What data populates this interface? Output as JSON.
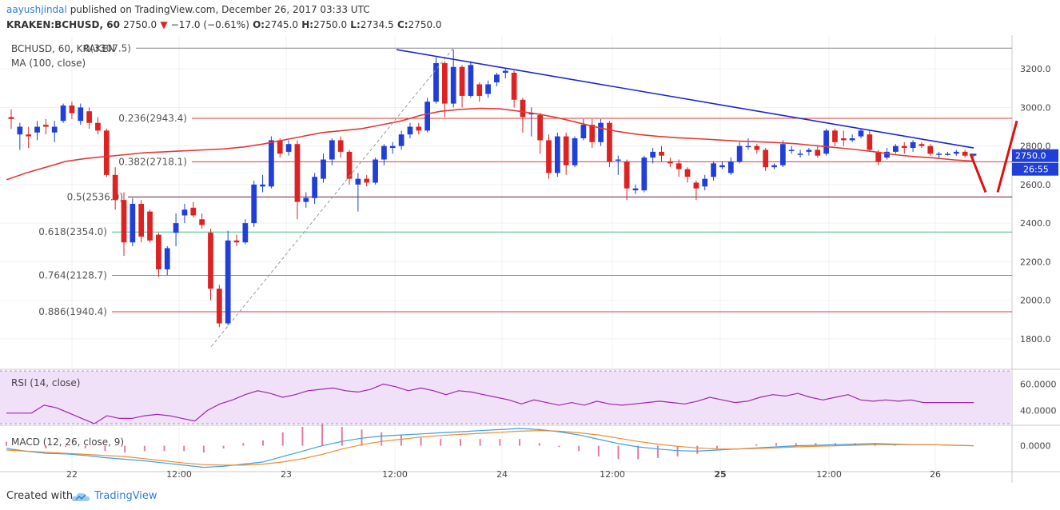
{
  "header": {
    "author": "aayushjindal",
    "published_text": "published on TradingView.com, December 26, 2017 03:33 UTC",
    "symbol": "KRAKEN:BCHUSD, 60",
    "last": "2750.0",
    "change": "−17.0 (−0.61%)",
    "o_label": "O:",
    "o": "2745.0",
    "h_label": "H:",
    "h": "2750.0",
    "l_label": "L:",
    "l": "2734.5",
    "c_label": "C:",
    "c": "2750.0"
  },
  "chart_labels": {
    "symbol_line": "BCHUSD, 60, KRAKEN",
    "ma_line": "MA (100, close)",
    "rsi_line": "RSI (14, close)",
    "macd_line": "MACD (12, 26, close, 9)",
    "price_tag": "2750.0",
    "time_tag": "26:55"
  },
  "footer": {
    "created_with": "Created with",
    "brand": "TradingView"
  },
  "colors": {
    "up": "#1f3fd8",
    "down": "#dd2222",
    "ma": "#e53935",
    "trendline": "#1c26d6",
    "rsi_fill": "#f0e0f8",
    "rsi_line": "#9c27b0",
    "macd": "#3aa0e8",
    "signal": "#ef8b2c"
  },
  "chart_data": [
    {
      "type": "candlestick",
      "title": "BCHUSD, 60, KRAKEN",
      "y_ticks": [
        "3200.0",
        "3000.0",
        "2800.0",
        "2600.0",
        "2400.0",
        "2200.0",
        "2000.0",
        "1800.0"
      ],
      "y_tick_values": [
        3200,
        3000,
        2800,
        2600,
        2400,
        2200,
        2000,
        1800
      ],
      "ylim": [
        1650,
        3350
      ],
      "x_ticks": [
        "22",
        "12:00",
        "23",
        "12:00",
        "24",
        "12:00",
        "25",
        "12:00",
        "26"
      ],
      "last_price": 2750.0,
      "candles": [
        [
          2950,
          2940,
          2890,
          2990
        ],
        [
          2860,
          2900,
          2780,
          2920
        ],
        [
          2860,
          2850,
          2790,
          2900
        ],
        [
          2870,
          2900,
          2830,
          2930
        ],
        [
          2910,
          2900,
          2860,
          2940
        ],
        [
          2870,
          2900,
          2820,
          2930
        ],
        [
          2930,
          3010,
          2920,
          3020
        ],
        [
          3010,
          2970,
          2940,
          3030
        ],
        [
          2930,
          3000,
          2910,
          3020
        ],
        [
          2980,
          2920,
          2890,
          3000
        ],
        [
          2920,
          2880,
          2860,
          2950
        ],
        [
          2880,
          2650,
          2640,
          2890
        ],
        [
          2650,
          2520,
          2470,
          2690
        ],
        [
          2520,
          2300,
          2230,
          2560
        ],
        [
          2300,
          2500,
          2280,
          2530
        ],
        [
          2500,
          2330,
          2300,
          2520
        ],
        [
          2460,
          2310,
          2300,
          2470
        ],
        [
          2340,
          2160,
          2120,
          2350
        ],
        [
          2160,
          2270,
          2130,
          2280
        ],
        [
          2350,
          2400,
          2280,
          2450
        ],
        [
          2440,
          2470,
          2400,
          2500
        ],
        [
          2480,
          2440,
          2430,
          2510
        ],
        [
          2420,
          2390,
          2370,
          2450
        ],
        [
          2350,
          2060,
          2000,
          2370
        ],
        [
          2060,
          1880,
          1860,
          2080
        ],
        [
          1880,
          2310,
          1870,
          2360
        ],
        [
          2310,
          2300,
          2280,
          2340
        ],
        [
          2300,
          2400,
          2290,
          2420
        ],
        [
          2400,
          2600,
          2380,
          2620
        ],
        [
          2590,
          2600,
          2560,
          2650
        ],
        [
          2590,
          2830,
          2580,
          2850
        ],
        [
          2830,
          2760,
          2740,
          2840
        ],
        [
          2770,
          2810,
          2750,
          2830
        ],
        [
          2810,
          2510,
          2420,
          2830
        ],
        [
          2510,
          2530,
          2480,
          2560
        ],
        [
          2530,
          2640,
          2500,
          2660
        ],
        [
          2630,
          2730,
          2610,
          2760
        ],
        [
          2730,
          2830,
          2700,
          2840
        ],
        [
          2830,
          2770,
          2740,
          2850
        ],
        [
          2770,
          2630,
          2600,
          2780
        ],
        [
          2600,
          2630,
          2460,
          2660
        ],
        [
          2630,
          2610,
          2590,
          2650
        ],
        [
          2610,
          2730,
          2600,
          2740
        ],
        [
          2730,
          2800,
          2700,
          2810
        ],
        [
          2790,
          2800,
          2760,
          2820
        ],
        [
          2800,
          2860,
          2780,
          2880
        ],
        [
          2860,
          2900,
          2840,
          2920
        ],
        [
          2900,
          2880,
          2860,
          2920
        ],
        [
          2880,
          3030,
          2870,
          3050
        ],
        [
          3030,
          3230,
          3020,
          3260
        ],
        [
          3230,
          3020,
          2950,
          3240
        ],
        [
          3020,
          3210,
          3000,
          3300
        ],
        [
          3210,
          3060,
          3000,
          3220
        ],
        [
          3060,
          3220,
          3050,
          3240
        ],
        [
          3120,
          3060,
          3030,
          3130
        ],
        [
          3070,
          3120,
          3050,
          3140
        ],
        [
          3130,
          3170,
          3110,
          3180
        ],
        [
          3180,
          3190,
          3150,
          3200
        ],
        [
          3180,
          3040,
          3000,
          3190
        ],
        [
          3040,
          2950,
          2870,
          3050
        ],
        [
          2970,
          2970,
          2850,
          3000
        ],
        [
          2960,
          2830,
          2760,
          2970
        ],
        [
          2830,
          2660,
          2630,
          2860
        ],
        [
          2660,
          2850,
          2640,
          2870
        ],
        [
          2850,
          2700,
          2650,
          2870
        ],
        [
          2700,
          2840,
          2690,
          2850
        ],
        [
          2840,
          2910,
          2830,
          2940
        ],
        [
          2910,
          2820,
          2790,
          2940
        ],
        [
          2820,
          2920,
          2800,
          2940
        ],
        [
          2920,
          2720,
          2690,
          2930
        ],
        [
          2730,
          2730,
          2650,
          2750
        ],
        [
          2720,
          2580,
          2520,
          2730
        ],
        [
          2570,
          2580,
          2550,
          2600
        ],
        [
          2570,
          2740,
          2560,
          2750
        ],
        [
          2740,
          2770,
          2710,
          2790
        ],
        [
          2770,
          2750,
          2720,
          2800
        ],
        [
          2720,
          2710,
          2690,
          2740
        ],
        [
          2710,
          2680,
          2640,
          2730
        ],
        [
          2680,
          2640,
          2610,
          2690
        ],
        [
          2610,
          2580,
          2520,
          2620
        ],
        [
          2590,
          2630,
          2570,
          2650
        ],
        [
          2640,
          2710,
          2620,
          2720
        ],
        [
          2690,
          2700,
          2680,
          2720
        ],
        [
          2660,
          2720,
          2650,
          2740
        ],
        [
          2720,
          2800,
          2710,
          2820
        ],
        [
          2800,
          2800,
          2780,
          2840
        ],
        [
          2800,
          2780,
          2760,
          2810
        ],
        [
          2780,
          2690,
          2670,
          2790
        ],
        [
          2690,
          2700,
          2680,
          2710
        ],
        [
          2700,
          2810,
          2690,
          2830
        ],
        [
          2780,
          2780,
          2760,
          2800
        ],
        [
          2760,
          2760,
          2740,
          2780
        ],
        [
          2770,
          2780,
          2750,
          2790
        ],
        [
          2780,
          2750,
          2740,
          2800
        ],
        [
          2760,
          2880,
          2750,
          2890
        ],
        [
          2880,
          2820,
          2800,
          2890
        ],
        [
          2840,
          2830,
          2800,
          2880
        ],
        [
          2830,
          2840,
          2820,
          2860
        ],
        [
          2850,
          2880,
          2840,
          2890
        ],
        [
          2860,
          2780,
          2770,
          2880
        ],
        [
          2770,
          2720,
          2700,
          2780
        ],
        [
          2740,
          2770,
          2730,
          2790
        ],
        [
          2770,
          2800,
          2760,
          2810
        ],
        [
          2800,
          2790,
          2760,
          2820
        ],
        [
          2790,
          2820,
          2770,
          2830
        ],
        [
          2810,
          2800,
          2790,
          2820
        ],
        [
          2800,
          2760,
          2750,
          2810
        ],
        [
          2760,
          2760,
          2740,
          2770
        ],
        [
          2760,
          2760,
          2750,
          2770
        ],
        [
          2760,
          2770,
          2750,
          2780
        ],
        [
          2770,
          2750,
          2740,
          2780
        ],
        [
          2750,
          2760,
          2740,
          2760
        ]
      ],
      "moving_average": [
        [
          2625
        ],
        [
          2660
        ],
        [
          2690
        ],
        [
          2720
        ],
        [
          2735
        ],
        [
          2745
        ],
        [
          2755
        ],
        [
          2765
        ],
        [
          2770
        ],
        [
          2775
        ],
        [
          2780
        ],
        [
          2785
        ],
        [
          2795
        ],
        [
          2810
        ],
        [
          2830
        ],
        [
          2850
        ],
        [
          2870
        ],
        [
          2880
        ],
        [
          2890
        ],
        [
          2910
        ],
        [
          2930
        ],
        [
          2960
        ],
        [
          2980
        ],
        [
          2990
        ],
        [
          2995
        ],
        [
          2993
        ],
        [
          2980
        ],
        [
          2965
        ],
        [
          2945
        ],
        [
          2920
        ],
        [
          2895
        ],
        [
          2875
        ],
        [
          2860
        ],
        [
          2850
        ],
        [
          2843
        ],
        [
          2838
        ],
        [
          2832
        ],
        [
          2826
        ],
        [
          2822
        ],
        [
          2818
        ],
        [
          2812
        ],
        [
          2802
        ],
        [
          2792
        ],
        [
          2782
        ],
        [
          2770
        ],
        [
          2755
        ],
        [
          2745
        ],
        [
          2738
        ],
        [
          2728
        ],
        [
          2722
        ]
      ],
      "fibonacci": [
        {
          "label": "0(3307.5)",
          "value": 3307.5,
          "color": "#888888"
        },
        {
          "label": "0.236(2943.4)",
          "value": 2943.4,
          "color": "#e53935"
        },
        {
          "label": "0.382(2718.1)",
          "value": 2718.1,
          "color": "#e53935"
        },
        {
          "label": "0.5(2536.0)",
          "value": 2536.0,
          "color": "#6a1b3a"
        },
        {
          "label": "0.618(2354.0)",
          "value": 2354.0,
          "color": "#3cc08a"
        },
        {
          "label": "0.764(2128.7)",
          "value": 2128.7,
          "color": "#4aa4d8"
        },
        {
          "label": "0.886(1940.4)",
          "value": 1940.4,
          "color": "#e53935"
        }
      ],
      "trendline": [
        [
          3300,
          2790
        ]
      ]
    },
    {
      "type": "line",
      "title": "RSI (14, close)",
      "y_ticks": [
        "60.0000",
        "40.0000"
      ],
      "y_tick_values": [
        60,
        40
      ],
      "ylim": [
        30,
        70
      ],
      "band": [
        30,
        70
      ],
      "values": [
        38,
        38,
        38,
        44,
        42,
        38,
        34,
        30,
        36,
        34,
        34,
        36,
        37,
        36,
        34,
        32,
        40,
        45,
        48,
        52,
        55,
        53,
        50,
        52,
        55,
        56,
        57,
        55,
        54,
        56,
        60,
        58,
        55,
        57,
        55,
        52,
        55,
        54,
        52,
        50,
        48,
        45,
        48,
        46,
        44,
        46,
        44,
        47,
        45,
        44,
        45,
        46,
        47,
        46,
        45,
        47,
        50,
        48,
        46,
        47,
        50,
        52,
        51,
        53,
        50,
        48,
        50,
        52,
        48,
        47,
        48,
        47,
        48,
        46,
        46,
        46,
        46,
        46
      ]
    },
    {
      "type": "line",
      "title": "MACD (12, 26, close, 9)",
      "y_ticks": [
        "0.0000"
      ],
      "y_tick_values": [
        0
      ],
      "ylim": [
        -45,
        35
      ],
      "series": [
        {
          "values": [
            -5,
            -10,
            -14,
            -15,
            -18,
            -22,
            -25,
            -28,
            -32,
            -36,
            -40,
            -38,
            -34,
            -30,
            -20,
            -10,
            0,
            8,
            14,
            18,
            20,
            22,
            24,
            26,
            28,
            30,
            32,
            30,
            26,
            20,
            12,
            4,
            -2,
            -6,
            -9,
            -10,
            -8,
            -6,
            -4,
            -2,
            0,
            1,
            2,
            3,
            4,
            3,
            2,
            2,
            1,
            0
          ]
        },
        {
          "values": [
            -8,
            -10,
            -12,
            -14,
            -16,
            -18,
            -20,
            -24,
            -28,
            -32,
            -35,
            -36,
            -36,
            -34,
            -30,
            -24,
            -16,
            -6,
            2,
            8,
            12,
            16,
            19,
            21,
            23,
            25,
            27,
            28,
            27,
            24,
            20,
            14,
            8,
            3,
            -1,
            -4,
            -6,
            -6,
            -5,
            -4,
            -2,
            -1,
            0,
            1,
            2,
            2,
            2,
            2,
            1,
            0
          ]
        }
      ]
    }
  ]
}
